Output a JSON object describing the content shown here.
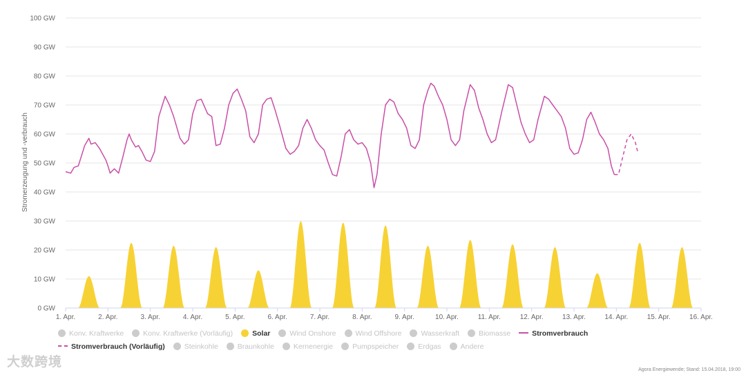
{
  "chart_data": {
    "type": "area",
    "ylabel": "Stromerzeugung und -verbrauch",
    "ylim": [
      0,
      100
    ],
    "yticks": [
      "0 GW",
      "10 GW",
      "20 GW",
      "30 GW",
      "40 GW",
      "50 GW",
      "60 GW",
      "70 GW",
      "80 GW",
      "90 GW",
      "100 GW"
    ],
    "xticks": [
      "1. Apr.",
      "2. Apr.",
      "3. Apr.",
      "4. Apr.",
      "5. Apr.",
      "6. Apr.",
      "7. Apr.",
      "8. Apr.",
      "9. Apr.",
      "10. Apr.",
      "11. Apr.",
      "12. Apr.",
      "13. Apr.",
      "14. Apr.",
      "15. Apr.",
      "16. Apr."
    ],
    "x_range_days": [
      0,
      15
    ],
    "grid": true,
    "legend_position": "bottom",
    "colors": {
      "solar": "#f7d234",
      "verbrauch": "#c94ea6",
      "inactive": "#cccccc",
      "grid": "#e6e6e6"
    },
    "series": [
      {
        "name": "Solar",
        "type": "area",
        "daily_peak_gw": [
          11,
          22.5,
          21.5,
          21,
          13,
          30,
          29.5,
          28.5,
          21.5,
          23.5,
          22,
          21,
          12,
          22.5,
          21
        ]
      },
      {
        "name": "Stromverbrauch",
        "type": "line",
        "points": [
          [
            0.0,
            47
          ],
          [
            0.12,
            46.5
          ],
          [
            0.2,
            48.5
          ],
          [
            0.3,
            49
          ],
          [
            0.45,
            56
          ],
          [
            0.55,
            58.5
          ],
          [
            0.6,
            56.5
          ],
          [
            0.7,
            57
          ],
          [
            0.8,
            55
          ],
          [
            0.95,
            51
          ],
          [
            1.0,
            49
          ],
          [
            1.05,
            46.5
          ],
          [
            1.15,
            48
          ],
          [
            1.25,
            46.5
          ],
          [
            1.35,
            52
          ],
          [
            1.45,
            58
          ],
          [
            1.5,
            60
          ],
          [
            1.55,
            58
          ],
          [
            1.65,
            55.5
          ],
          [
            1.72,
            56
          ],
          [
            1.8,
            54
          ],
          [
            1.9,
            51
          ],
          [
            2.0,
            50.5
          ],
          [
            2.1,
            54
          ],
          [
            2.2,
            66
          ],
          [
            2.35,
            73
          ],
          [
            2.45,
            70
          ],
          [
            2.55,
            66
          ],
          [
            2.7,
            58.5
          ],
          [
            2.8,
            56.5
          ],
          [
            2.9,
            58
          ],
          [
            3.0,
            67
          ],
          [
            3.1,
            71.5
          ],
          [
            3.2,
            72
          ],
          [
            3.35,
            67
          ],
          [
            3.45,
            66
          ],
          [
            3.55,
            56
          ],
          [
            3.65,
            56.5
          ],
          [
            3.75,
            62
          ],
          [
            3.85,
            70
          ],
          [
            3.95,
            74
          ],
          [
            4.05,
            75.5
          ],
          [
            4.15,
            72
          ],
          [
            4.25,
            68
          ],
          [
            4.35,
            59
          ],
          [
            4.45,
            57
          ],
          [
            4.55,
            60
          ],
          [
            4.65,
            70
          ],
          [
            4.75,
            72
          ],
          [
            4.85,
            72.5
          ],
          [
            4.95,
            68
          ],
          [
            5.05,
            63
          ],
          [
            5.2,
            55
          ],
          [
            5.3,
            53
          ],
          [
            5.4,
            54
          ],
          [
            5.5,
            56
          ],
          [
            5.6,
            62
          ],
          [
            5.7,
            65
          ],
          [
            5.8,
            62
          ],
          [
            5.9,
            58
          ],
          [
            6.0,
            56
          ],
          [
            6.1,
            54.5
          ],
          [
            6.2,
            50
          ],
          [
            6.3,
            46
          ],
          [
            6.4,
            45.5
          ],
          [
            6.5,
            52
          ],
          [
            6.6,
            60
          ],
          [
            6.7,
            61.5
          ],
          [
            6.8,
            58
          ],
          [
            6.9,
            56.5
          ],
          [
            7.0,
            57
          ],
          [
            7.1,
            55
          ],
          [
            7.2,
            50
          ],
          [
            7.28,
            41.5
          ],
          [
            7.35,
            46
          ],
          [
            7.45,
            60
          ],
          [
            7.55,
            70
          ],
          [
            7.65,
            72
          ],
          [
            7.75,
            71
          ],
          [
            7.85,
            67
          ],
          [
            7.95,
            65
          ],
          [
            8.05,
            62
          ],
          [
            8.15,
            56
          ],
          [
            8.25,
            55
          ],
          [
            8.35,
            58
          ],
          [
            8.45,
            70
          ],
          [
            8.55,
            75
          ],
          [
            8.62,
            77.5
          ],
          [
            8.7,
            76.5
          ],
          [
            8.8,
            73
          ],
          [
            8.9,
            70
          ],
          [
            9.0,
            65
          ],
          [
            9.1,
            58
          ],
          [
            9.2,
            56
          ],
          [
            9.3,
            58
          ],
          [
            9.4,
            68
          ],
          [
            9.55,
            77
          ],
          [
            9.65,
            75
          ],
          [
            9.75,
            69
          ],
          [
            9.85,
            65
          ],
          [
            9.95,
            60
          ],
          [
            10.05,
            57
          ],
          [
            10.15,
            58
          ],
          [
            10.3,
            68
          ],
          [
            10.45,
            77
          ],
          [
            10.55,
            76
          ],
          [
            10.65,
            70
          ],
          [
            10.75,
            64
          ],
          [
            10.85,
            60
          ],
          [
            10.95,
            57
          ],
          [
            11.05,
            58
          ],
          [
            11.15,
            65
          ],
          [
            11.3,
            73
          ],
          [
            11.4,
            72
          ],
          [
            11.5,
            70
          ],
          [
            11.6,
            68
          ],
          [
            11.7,
            66
          ],
          [
            11.8,
            62
          ],
          [
            11.9,
            55
          ],
          [
            12.0,
            53
          ],
          [
            12.1,
            53.5
          ],
          [
            12.2,
            58
          ],
          [
            12.3,
            65
          ],
          [
            12.4,
            67.5
          ],
          [
            12.5,
            64
          ],
          [
            12.6,
            60
          ],
          [
            12.7,
            58
          ],
          [
            12.8,
            55
          ],
          [
            12.88,
            49
          ],
          [
            12.95,
            46
          ]
        ]
      },
      {
        "name": "Stromverbrauch (Vorläufig)",
        "type": "line",
        "dashed": true,
        "points": [
          [
            12.95,
            46
          ],
          [
            13.05,
            46
          ],
          [
            13.15,
            52
          ],
          [
            13.25,
            58
          ],
          [
            13.35,
            60
          ],
          [
            13.45,
            57
          ],
          [
            13.5,
            54
          ]
        ]
      }
    ]
  },
  "legend": [
    {
      "label": "Konv. Kraftwerke",
      "marker": "dot",
      "active": false
    },
    {
      "label": "Konv. Kraftwerke (Vorläufig)",
      "marker": "dot",
      "active": false
    },
    {
      "label": "Solar",
      "marker": "dot",
      "active": true,
      "color": "#f7d234"
    },
    {
      "label": "Wind Onshore",
      "marker": "dot",
      "active": false
    },
    {
      "label": "Wind Offshore",
      "marker": "dot",
      "active": false
    },
    {
      "label": "Wasserkraft",
      "marker": "dot",
      "active": false
    },
    {
      "label": "Biomasse",
      "marker": "dot",
      "active": false
    },
    {
      "label": "Stromverbrauch",
      "marker": "line",
      "active": true,
      "color": "#c94ea6"
    },
    {
      "label": "Stromverbrauch (Vorläufig)",
      "marker": "dash",
      "active": true,
      "color": "#c94ea6"
    },
    {
      "label": "Steinkohle",
      "marker": "dot",
      "active": false
    },
    {
      "label": "Braunkohle",
      "marker": "dot",
      "active": false
    },
    {
      "label": "Kernenergie",
      "marker": "dot",
      "active": false
    },
    {
      "label": "Pumpspeicher",
      "marker": "dot",
      "active": false
    },
    {
      "label": "Erdgas",
      "marker": "dot",
      "active": false
    },
    {
      "label": "Andere",
      "marker": "dot",
      "active": false
    }
  ],
  "watermark": "大数跨境",
  "credits": "Agora Energiewende; Stand: 15.04.2018, 19:00"
}
